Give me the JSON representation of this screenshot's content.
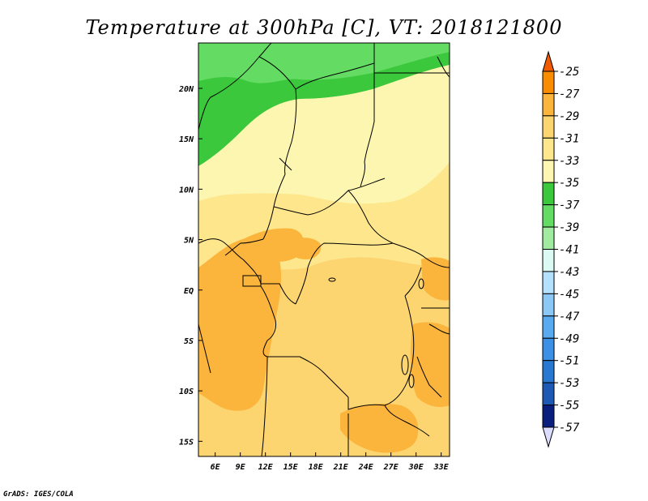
{
  "chart_data": {
    "type": "heatmap",
    "title": "Temperature at 300hPa [C], VT: 2018121800",
    "x_ticks": [
      "6E",
      "9E",
      "12E",
      "15E",
      "18E",
      "21E",
      "24E",
      "27E",
      "30E",
      "33E"
    ],
    "y_ticks": [
      "20N",
      "15N",
      "10N",
      "5N",
      "EQ",
      "5S",
      "10S",
      "15S"
    ],
    "xlim": [
      4,
      34
    ],
    "ylim": [
      -16.5,
      24.5
    ],
    "colorbar": {
      "labels": [
        "-25",
        "-27",
        "-29",
        "-31",
        "-33",
        "-35",
        "-37",
        "-39",
        "-41",
        "-43",
        "-45",
        "-47",
        "-49",
        "-51",
        "-53",
        "-55",
        "-57"
      ],
      "colors": [
        "#f05a00",
        "#fa8c00",
        "#fbb43c",
        "#fcd470",
        "#fde68c",
        "#fdf6b0",
        "#3cc83c",
        "#64dc64",
        "#a0eba0",
        "#dcfaf4",
        "#b4e1ff",
        "#8cc8f5",
        "#5aaaf0",
        "#3c91e6",
        "#2878d2",
        "#1e5ab4",
        "#0a1e7d",
        "#dcdcff"
      ]
    },
    "regions": [
      {
        "label": "-39",
        "color": "#64dc64"
      },
      {
        "label": "-37",
        "color": "#3cc83c"
      },
      {
        "label": "-35",
        "color": "#fdf6b0"
      },
      {
        "label": "-33",
        "color": "#fde68c"
      },
      {
        "label": "-31",
        "color": "#fcd470"
      },
      {
        "label": "-29",
        "color": "#fbb43c"
      }
    ]
  },
  "credit": "GrADS: IGES/COLA"
}
